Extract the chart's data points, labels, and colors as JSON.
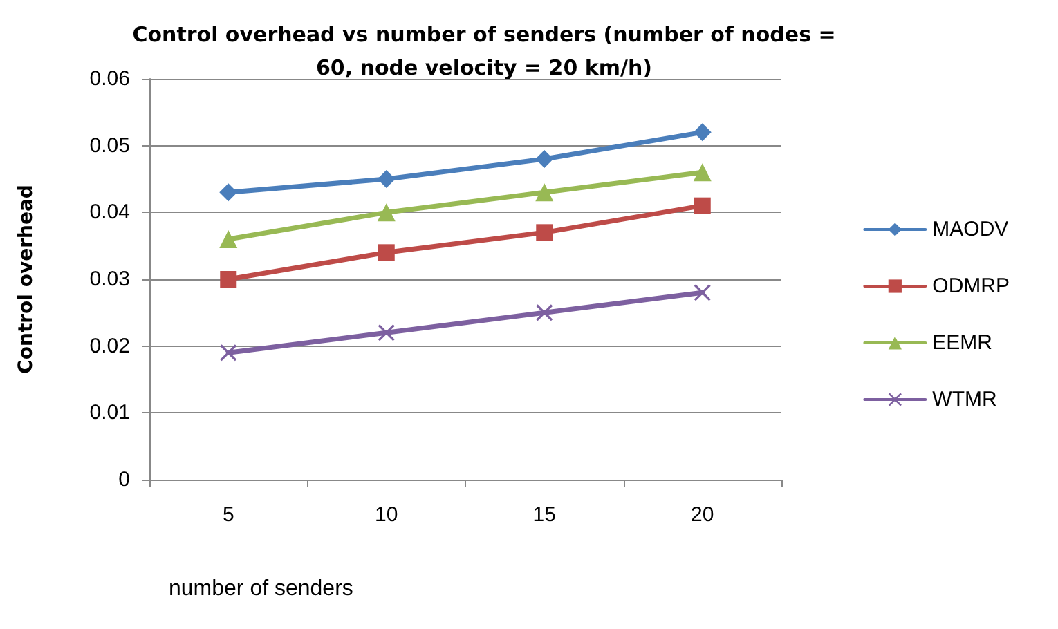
{
  "chart_data": {
    "type": "line",
    "title": "Control overhead vs number of senders (number of nodes =\n60, node velocity = 20 km/h)",
    "xlabel": "number of senders",
    "ylabel": "Control overhead",
    "categories": [
      "5",
      "10",
      "15",
      "20"
    ],
    "series": [
      {
        "name": "MAODV",
        "color": "#4a7ebb",
        "marker": "diamond",
        "values": [
          0.043,
          0.045,
          0.048,
          0.052
        ]
      },
      {
        "name": "ODMRP",
        "color": "#be4b48",
        "marker": "square",
        "values": [
          0.03,
          0.034,
          0.037,
          0.041
        ]
      },
      {
        "name": "EEMR",
        "color": "#98b954",
        "marker": "triangle",
        "values": [
          0.036,
          0.04,
          0.043,
          0.046
        ]
      },
      {
        "name": "WTMR",
        "color": "#7d60a0",
        "marker": "cross",
        "values": [
          0.019,
          0.022,
          0.025,
          0.028
        ]
      }
    ],
    "ylim": [
      0,
      0.06
    ],
    "yticks": [
      0,
      0.01,
      0.02,
      0.03,
      0.04,
      0.05,
      0.06
    ],
    "grid": "y",
    "legend": "right",
    "line_style": "solid"
  }
}
